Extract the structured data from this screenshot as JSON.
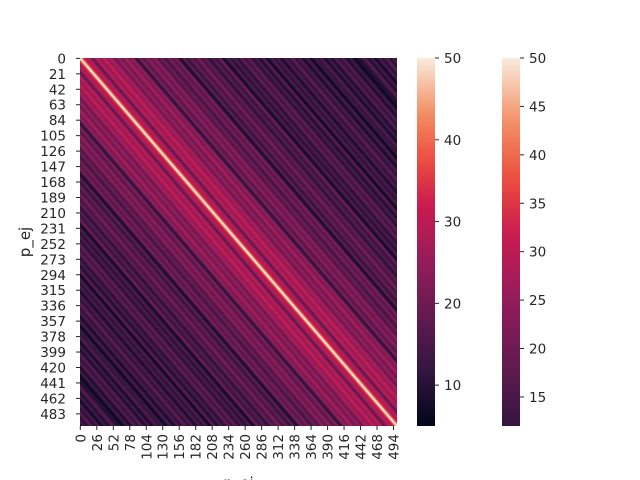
{
  "chart_data": {
    "type": "heatmap",
    "title": "",
    "xlabel": "p_ej",
    "ylabel": "p_ej",
    "n": 500,
    "x_tick_labels": [
      "0",
      "26",
      "52",
      "78",
      "104",
      "130",
      "156",
      "182",
      "208",
      "234",
      "260",
      "286",
      "312",
      "338",
      "364",
      "390",
      "416",
      "442",
      "468",
      "494"
    ],
    "y_tick_labels": [
      "0",
      "21",
      "42",
      "63",
      "84",
      "105",
      "126",
      "147",
      "168",
      "189",
      "210",
      "231",
      "252",
      "273",
      "294",
      "315",
      "336",
      "357",
      "378",
      "399",
      "420",
      "441",
      "462",
      "483"
    ],
    "x_tick_values": [
      0,
      26,
      52,
      78,
      104,
      130,
      156,
      182,
      208,
      234,
      260,
      286,
      312,
      338,
      364,
      390,
      416,
      442,
      468,
      494
    ],
    "y_tick_values": [
      0,
      21,
      42,
      63,
      84,
      105,
      126,
      147,
      168,
      189,
      210,
      231,
      252,
      273,
      294,
      315,
      336,
      357,
      378,
      399,
      420,
      441,
      462,
      483
    ],
    "diagonal_value": 50,
    "near_diagonal_value": 32,
    "far_value": 12,
    "vmin": 5,
    "vmax": 50,
    "colormap": "rocket",
    "colorbars": [
      {
        "min": 5,
        "max": 50,
        "ticks": [
          "10",
          "20",
          "30",
          "40",
          "50"
        ],
        "tick_values": [
          10,
          20,
          30,
          40,
          50
        ]
      },
      {
        "min": 12,
        "max": 50,
        "ticks": [
          "15",
          "20",
          "25",
          "30",
          "35",
          "40",
          "45",
          "50"
        ],
        "tick_values": [
          15,
          20,
          25,
          30,
          35,
          40,
          45,
          50
        ]
      }
    ]
  }
}
